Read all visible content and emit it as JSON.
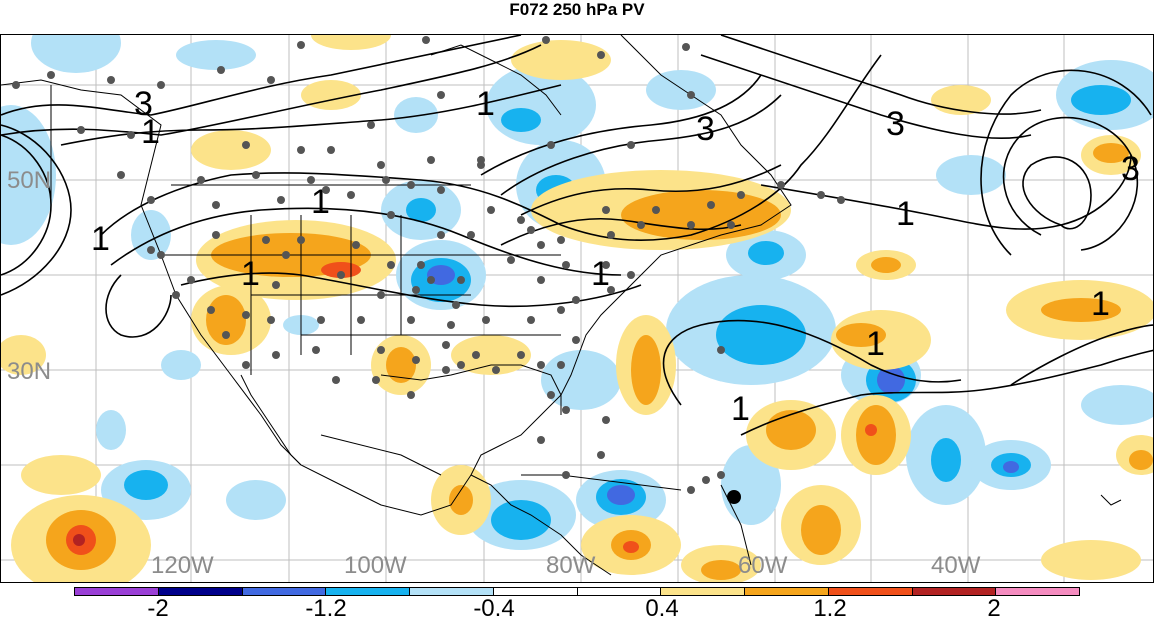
{
  "title": "F072 250 hPa PV",
  "longitude_labels": [
    "120W",
    "100W",
    "80W",
    "60W",
    "40W"
  ],
  "latitude_labels": [
    "50N",
    "30N"
  ],
  "colorbar": {
    "colors": [
      "#9a3fd6",
      "#00008b",
      "#4169e1",
      "#17b2ef",
      "#b3e1f7",
      "#ffffff",
      "#ffffff",
      "#fce38a",
      "#f5a51c",
      "#f0501a",
      "#b22222",
      "#f58cc0"
    ],
    "tick_labels": [
      "-2",
      "-1.2",
      "-0.4",
      "0.4",
      "1.2",
      "2"
    ]
  },
  "contour_labels": [
    "3",
    "1",
    "1",
    "1",
    "1",
    "3",
    "1",
    "3",
    "1",
    "1",
    "1",
    "3",
    "1",
    "1"
  ]
}
